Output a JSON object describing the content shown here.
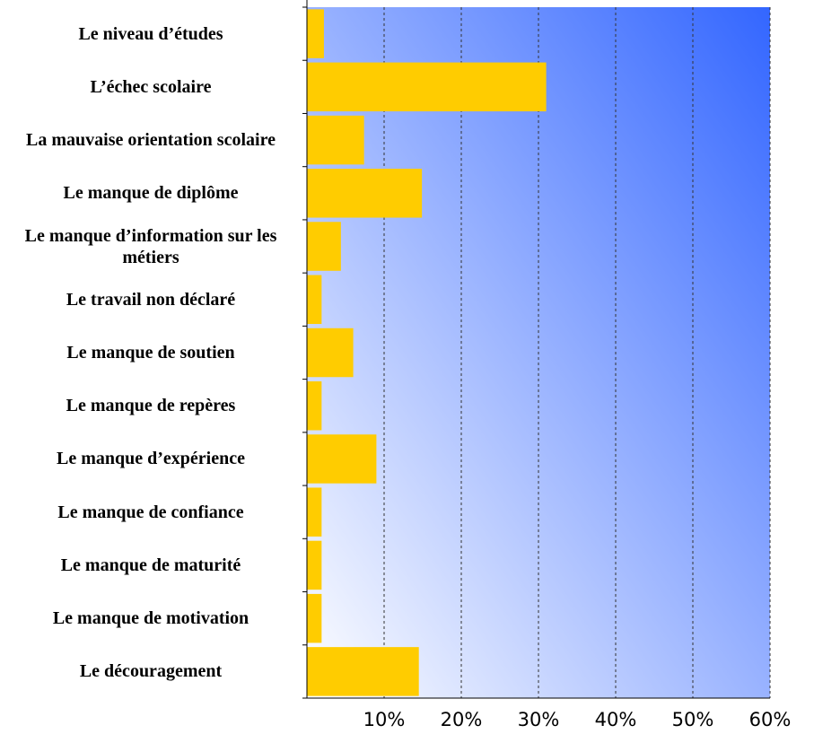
{
  "chart_data": {
    "type": "barh",
    "categories": [
      "Le niveau d’études",
      "L’échec scolaire",
      "La mauvaise orientation scolaire",
      "Le manque de diplôme",
      "Le manque d’information sur les métiers",
      "Le travail non déclaré",
      "Le manque de soutien",
      "Le manque de repères",
      "Le manque d’expérience",
      "Le manque de confiance",
      "Le manque de maturité",
      "Le manque de motivation",
      "Le découragement"
    ],
    "values": [
      2.2,
      31.0,
      7.4,
      14.9,
      4.4,
      1.9,
      6.0,
      1.9,
      9.0,
      1.9,
      1.9,
      1.9,
      14.5
    ],
    "color": "#ffcc00",
    "xlim": [
      0,
      60
    ],
    "xticks": [
      {
        "value": 10,
        "label": "10%"
      },
      {
        "value": 20,
        "label": "20%"
      },
      {
        "value": 30,
        "label": "30%"
      },
      {
        "value": 40,
        "label": "40%"
      },
      {
        "value": 50,
        "label": "50%"
      },
      {
        "value": 60,
        "label": "60%"
      }
    ],
    "grid": true
  }
}
